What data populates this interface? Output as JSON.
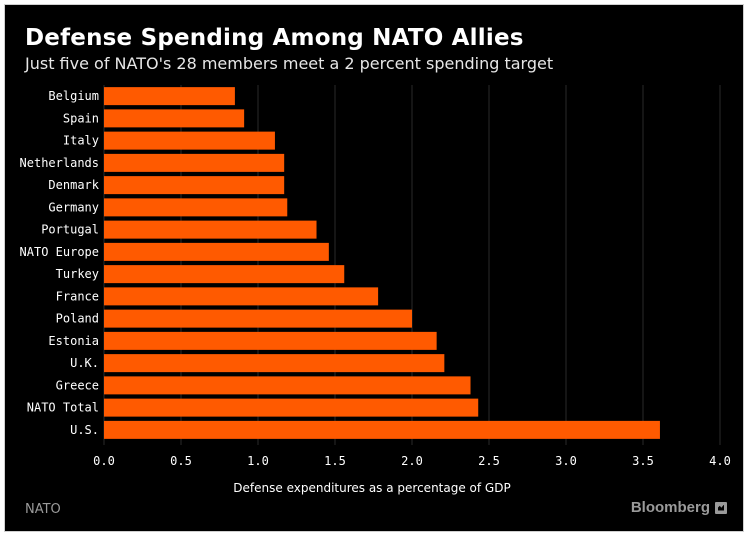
{
  "header": {
    "title": "Defense Spending Among NATO Allies",
    "subtitle": "Just five of NATO's 28 members meet a 2 percent spending target"
  },
  "footer": {
    "source": "NATO",
    "brand": "Bloomberg",
    "brand_icon": "bloomberg-logo-icon"
  },
  "colors": {
    "background": "#000000",
    "bar": "#ff5a00",
    "text": "#ffffff",
    "grid": "#2a2a2a",
    "footer_text": "#9a9a9a"
  },
  "chart_data": {
    "type": "bar",
    "orientation": "horizontal",
    "title": "Defense Spending Among NATO Allies",
    "subtitle": "Just five of NATO's 28 members meet a 2 percent spending target",
    "xlabel": "Defense expenditures as a percentage of GDP",
    "ylabel": "",
    "xlim": [
      0,
      4.0
    ],
    "xticks": [
      "0.0",
      "0.5",
      "1.0",
      "1.5",
      "2.0",
      "2.5",
      "3.0",
      "3.5",
      "4.0"
    ],
    "grid": true,
    "categories": [
      "Belgium",
      "Spain",
      "Italy",
      "Netherlands",
      "Denmark",
      "Germany",
      "Portugal",
      "NATO Europe",
      "Turkey",
      "France",
      "Poland",
      "Estonia",
      "U.K.",
      "Greece",
      "NATO Total",
      "U.S."
    ],
    "values": [
      0.85,
      0.91,
      1.11,
      1.17,
      1.17,
      1.19,
      1.38,
      1.46,
      1.56,
      1.78,
      2.0,
      2.16,
      2.21,
      2.38,
      2.43,
      3.61
    ]
  }
}
